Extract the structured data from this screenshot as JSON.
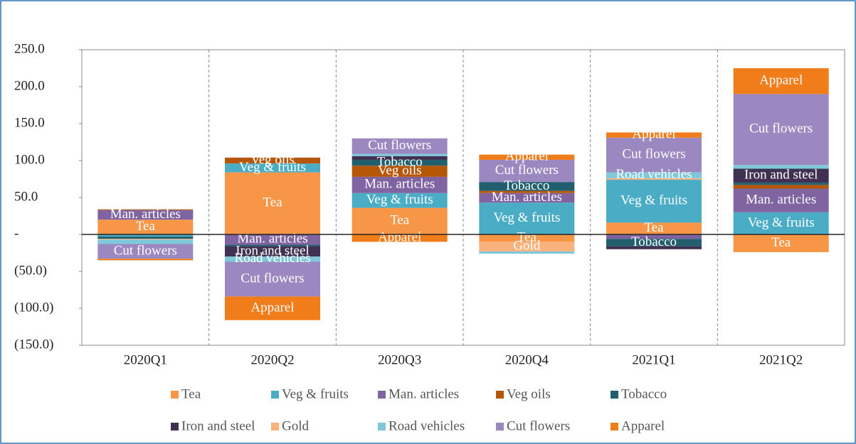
{
  "chart_data": {
    "type": "stacked_bar",
    "categories": [
      "2020Q1",
      "2020Q2",
      "2020Q3",
      "2020Q4",
      "2021Q1",
      "2021Q2"
    ],
    "series": [
      {
        "name": "Tea",
        "color": "#F79646",
        "values": [
          20,
          84,
          36,
          -10,
          16,
          -24
        ]
      },
      {
        "name": "Veg & fruits",
        "color": "#4BACC6",
        "values": [
          -3,
          12,
          20,
          43,
          58,
          30
        ]
      },
      {
        "name": "Man. articles",
        "color": "#8064A2",
        "values": [
          13,
          -14,
          22,
          13,
          -6,
          32
        ]
      },
      {
        "name": "Veg oils",
        "color": "#B65708",
        "values": [
          1,
          8,
          15,
          3,
          0,
          5
        ]
      },
      {
        "name": "Tobacco",
        "color": "#215F6E",
        "values": [
          -3,
          -2,
          8,
          12,
          -10,
          3
        ]
      },
      {
        "name": "Iron and steel",
        "color": "#403152",
        "values": [
          0,
          -14,
          5,
          0,
          -4,
          19
        ]
      },
      {
        "name": "Gold",
        "color": "#FAB27D",
        "values": [
          -1,
          0,
          0,
          -13,
          2,
          0
        ]
      },
      {
        "name": "Road vehicles",
        "color": "#7FC8DA",
        "values": [
          -6,
          -7,
          3,
          -3,
          8,
          5
        ]
      },
      {
        "name": "Cut flowers",
        "color": "#9C88C0",
        "values": [
          -20,
          -47,
          21,
          30,
          47,
          96
        ]
      },
      {
        "name": "Apparel",
        "color": "#F07C1A",
        "values": [
          -2,
          -32,
          -10,
          7,
          7,
          35
        ]
      }
    ],
    "ylim": [
      -150,
      250
    ],
    "yticks": [
      {
        "value": -150,
        "label": "(150.0)"
      },
      {
        "value": -100,
        "label": "(100.0)"
      },
      {
        "value": -50,
        "label": "(50.0)"
      },
      {
        "value": 0,
        "label": "-"
      },
      {
        "value": 50,
        "label": "50.0"
      },
      {
        "value": 100,
        "label": "100.0"
      },
      {
        "value": 150,
        "label": "150.0"
      },
      {
        "value": 200,
        "label": "200.0"
      },
      {
        "value": 250,
        "label": "250.0"
      }
    ],
    "legend": "bottom"
  }
}
